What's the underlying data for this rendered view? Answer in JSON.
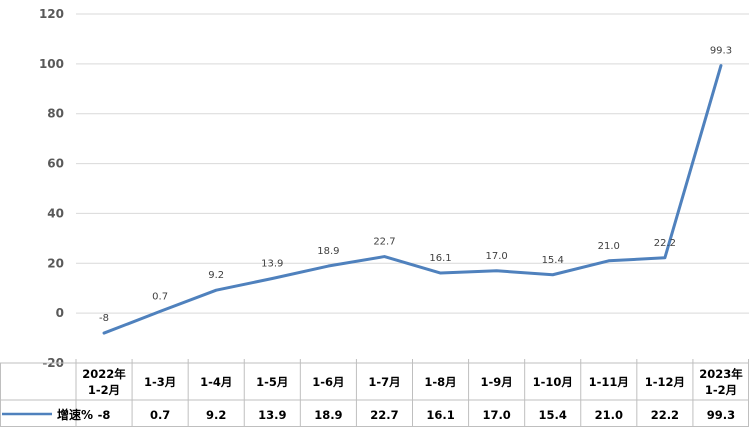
{
  "chart_data": {
    "type": "line",
    "categories": [
      "2022年\n1-2月",
      "1-3月",
      "1-4月",
      "1-5月",
      "1-6月",
      "1-7月",
      "1-8月",
      "1-9月",
      "1-10月",
      "1-11月",
      "1-12月",
      "2023年\n1-2月"
    ],
    "series": [
      {
        "name": "增速%",
        "values": [
          -8,
          0.7,
          9.2,
          13.9,
          18.9,
          22.7,
          16.1,
          17.0,
          15.4,
          21.0,
          22.2,
          99.3
        ],
        "labels": [
          "-8",
          "0.7",
          "9.2",
          "13.9",
          "18.9",
          "22.7",
          "16.1",
          "17.0",
          "15.4",
          "21.0",
          "22.2",
          "99.3"
        ],
        "color": "#4f81bd"
      }
    ],
    "ylim": [
      -20,
      120
    ],
    "yticks": [
      -20,
      0,
      20,
      40,
      60,
      80,
      100,
      120
    ],
    "grid": true,
    "data_table": true,
    "title": "",
    "xlabel": "",
    "ylabel": ""
  },
  "colors": {
    "gridline": "#d9d9d9",
    "table_border": "#bfbfbf"
  }
}
